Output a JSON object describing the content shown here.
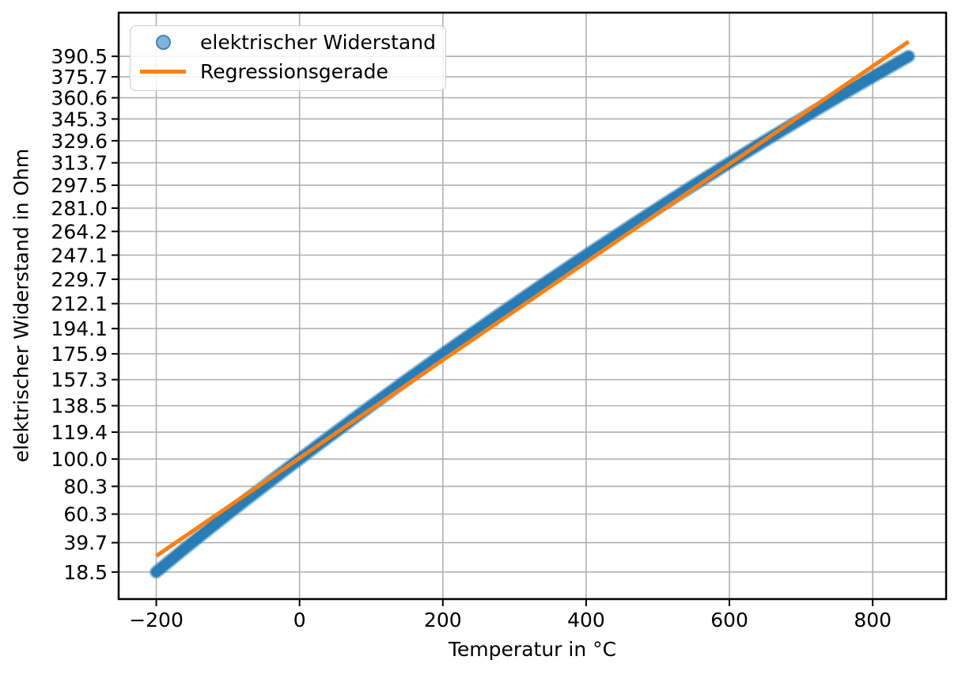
{
  "chart_data": {
    "type": "scatter",
    "title": "",
    "xlabel": "Temperatur in °C",
    "ylabel": "elektrischer Widerstand in Ohm",
    "xlim": [
      -252.5,
      902.5
    ],
    "ylim": [
      -1,
      422
    ],
    "grid": true,
    "legend_position": "upper left",
    "x_ticks": {
      "values": [
        -200,
        0,
        200,
        400,
        600,
        800
      ],
      "labels": [
        "−200",
        "0",
        "200",
        "400",
        "600",
        "800"
      ]
    },
    "y_ticks": {
      "values": [
        390.5,
        375.7,
        360.6,
        345.3,
        329.6,
        313.7,
        297.5,
        281.0,
        264.2,
        247.1,
        229.7,
        212.1,
        194.1,
        175.9,
        157.3,
        138.5,
        119.4,
        100.0,
        80.3,
        60.3,
        39.7,
        18.5
      ],
      "labels": [
        "390.5",
        "375.7",
        "360.6",
        "345.3",
        "329.6",
        "313.7",
        "297.5",
        "281.0",
        "264.2",
        "247.1",
        "229.7",
        "212.1",
        "194.1",
        "175.9",
        "157.3",
        "138.5",
        "119.4",
        "100.0",
        "80.3",
        "60.3",
        "39.7",
        "18.5"
      ]
    },
    "series": [
      {
        "name": "elektrischer Widerstand",
        "kind": "scatter",
        "marker": "circle",
        "color": "#1f77b4",
        "x": [
          -200,
          -175,
          -150,
          -125,
          -100,
          -75,
          -50,
          -25,
          0,
          25,
          50,
          75,
          100,
          125,
          150,
          175,
          200,
          225,
          250,
          275,
          300,
          325,
          350,
          375,
          400,
          425,
          450,
          475,
          500,
          525,
          550,
          575,
          600,
          625,
          650,
          675,
          700,
          725,
          750,
          775,
          800,
          825,
          850
        ],
        "y": [
          18.52,
          29.22,
          39.72,
          50.06,
          60.26,
          70.33,
          80.31,
          90.19,
          100.0,
          109.73,
          119.4,
          128.99,
          138.51,
          147.95,
          157.33,
          166.63,
          175.86,
          185.01,
          194.1,
          203.11,
          212.05,
          220.92,
          229.72,
          238.43,
          247.09,
          255.66,
          264.18,
          272.6,
          280.98,
          289.25,
          297.49,
          305.61,
          313.71,
          321.68,
          329.64,
          337.47,
          345.28,
          352.96,
          360.64,
          368.16,
          375.7,
          383.08,
          390.48
        ],
        "y_unit": "Ohm"
      },
      {
        "name": "Regressionsgerade",
        "kind": "line",
        "color": "#ff7f0e",
        "x": [
          -200,
          850
        ],
        "y": [
          30.1,
          401.1
        ]
      }
    ],
    "colors": {
      "grid": "#b0b0b0",
      "spine": "#000000",
      "text": "#000000",
      "legend_border": "#cccccc"
    }
  }
}
